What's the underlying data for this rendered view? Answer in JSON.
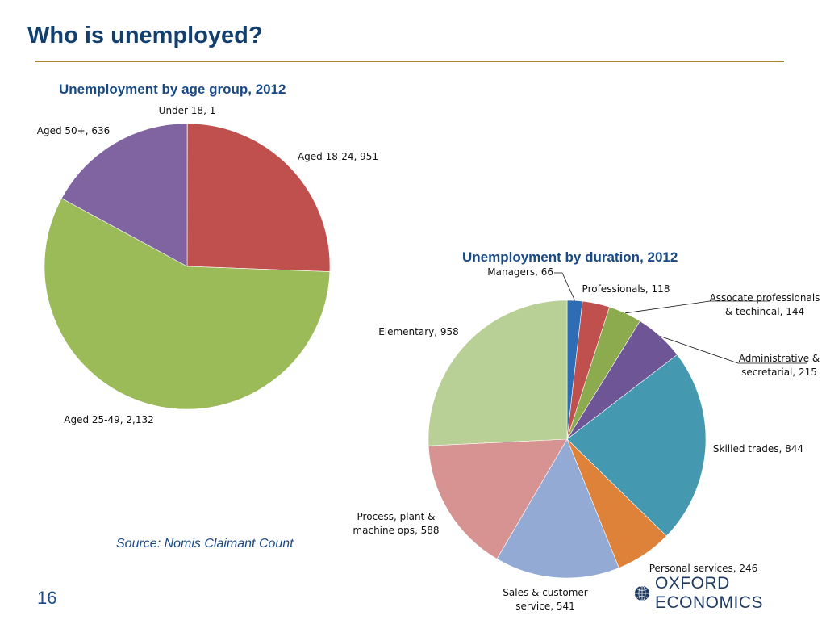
{
  "slide": {
    "title": "Who is unemployed?",
    "source": "Source: Nomis Claimant Count",
    "page_number": "16",
    "logo_text": "OXFORD ECONOMICS"
  },
  "chart_data": [
    {
      "type": "pie",
      "title": "Unemployment by age group, 2012",
      "labels": [
        "Under 18",
        "Aged 18-24",
        "Aged 25-49",
        "Aged 50+"
      ],
      "values": [
        1,
        951,
        2132,
        636
      ],
      "data_labels": [
        "Under 18, 1",
        "Aged 18-24, 951",
        "Aged 25-49, 2,132",
        "Aged 50+, 636"
      ],
      "colors": [
        "#4f81bd",
        "#c0504d",
        "#9bbb59",
        "#8064a2"
      ],
      "legend": "none"
    },
    {
      "type": "pie",
      "title": "Unemployment by duration, 2012",
      "labels": [
        "Managers",
        "Professionals",
        "Assocate professionals & techincal",
        "Administrative & secretarial",
        "Skilled trades",
        "Personal services",
        "Sales & customer service",
        "Process, plant & machine ops",
        "Elementary"
      ],
      "values": [
        66,
        118,
        144,
        215,
        844,
        246,
        541,
        588,
        958
      ],
      "data_labels": [
        [
          "Managers, 66"
        ],
        [
          "Professionals, 118"
        ],
        [
          "Assocate professionals",
          "& techincal, 144"
        ],
        [
          "Administrative &",
          "secretarial, 215"
        ],
        [
          "Skilled trades, 844"
        ],
        [
          "Personal services, 246"
        ],
        [
          "Sales & customer",
          "service, 541"
        ],
        [
          "Process, plant &",
          "machine ops, 588"
        ],
        [
          "Elementary, 958"
        ]
      ],
      "colors": [
        "#2e6db4",
        "#c0504d",
        "#8bab4e",
        "#6d5596",
        "#4498b0",
        "#de8239",
        "#93aad4",
        "#d69391",
        "#b8cf96"
      ],
      "legend": "none"
    }
  ]
}
